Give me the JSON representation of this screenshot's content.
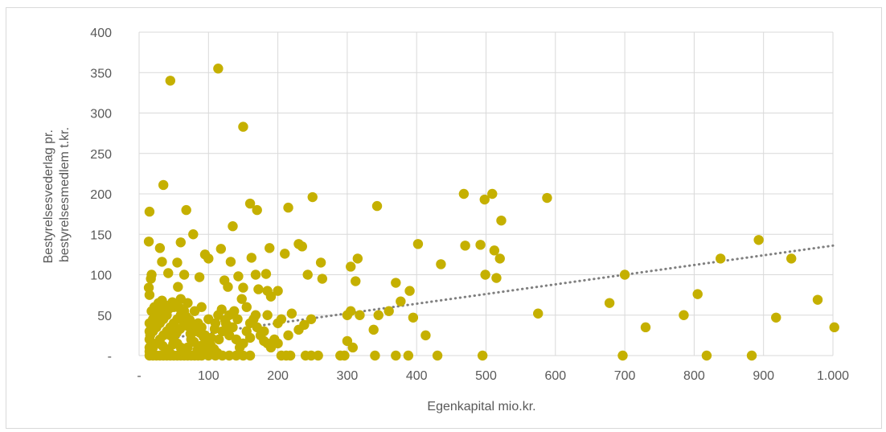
{
  "chart_data": {
    "type": "scatter",
    "xlabel": "Egenkapital mio.kr.",
    "ylabel_lines": [
      "Bestyrelsesvederlag pr.",
      "bestyrelsesmedlem t.kr."
    ],
    "xlim": [
      0,
      1000
    ],
    "ylim": [
      0,
      400
    ],
    "x_ticks": [
      0,
      100,
      200,
      300,
      400,
      500,
      600,
      700,
      800,
      900,
      1000
    ],
    "x_tick_labels": [
      "-",
      "100",
      "200",
      "300",
      "400",
      "500",
      "600",
      "700",
      "800",
      "900",
      "1.000"
    ],
    "y_ticks": [
      0,
      50,
      100,
      150,
      200,
      250,
      300,
      350,
      400
    ],
    "y_tick_labels": [
      "-",
      "50",
      "100",
      "150",
      "200",
      "250",
      "300",
      "350",
      "400"
    ],
    "grid": true,
    "colors": {
      "points": "#C5B000",
      "trendline": "#7f7f7f",
      "grid": "#d9d9d9",
      "text": "#595959"
    },
    "trendline": {
      "type": "linear",
      "style": "dotted",
      "x": [
        15,
        1000
      ],
      "y": [
        18,
        136
      ]
    },
    "series": [
      {
        "points": [
          [
            15,
            178
          ],
          [
            14,
            141
          ],
          [
            18,
            100
          ],
          [
            17,
            95
          ],
          [
            14,
            84
          ],
          [
            15,
            75
          ],
          [
            35,
            211
          ],
          [
            45,
            340
          ],
          [
            114,
            355
          ],
          [
            150,
            283
          ],
          [
            68,
            180
          ],
          [
            60,
            140
          ],
          [
            30,
            133
          ],
          [
            78,
            150
          ],
          [
            33,
            116
          ],
          [
            42,
            102
          ],
          [
            55,
            115
          ],
          [
            100,
            120
          ],
          [
            95,
            125
          ],
          [
            65,
            100
          ],
          [
            56,
            85
          ],
          [
            87,
            97
          ],
          [
            118,
            132
          ],
          [
            135,
            160
          ],
          [
            160,
            188
          ],
          [
            170,
            180
          ],
          [
            162,
            121
          ],
          [
            132,
            116
          ],
          [
            123,
            93
          ],
          [
            143,
            98
          ],
          [
            215,
            183
          ],
          [
            250,
            196
          ],
          [
            230,
            138
          ],
          [
            235,
            135
          ],
          [
            210,
            126
          ],
          [
            188,
            133
          ],
          [
            262,
            115
          ],
          [
            264,
            95
          ],
          [
            243,
            100
          ],
          [
            168,
            100
          ],
          [
            183,
            101
          ],
          [
            150,
            84
          ],
          [
            128,
            85
          ],
          [
            172,
            82
          ],
          [
            148,
            70
          ],
          [
            137,
            55
          ],
          [
            185,
            80
          ],
          [
            200,
            80
          ],
          [
            190,
            73
          ],
          [
            155,
            60
          ],
          [
            168,
            50
          ],
          [
            142,
            45
          ],
          [
            185,
            50
          ],
          [
            205,
            45
          ],
          [
            200,
            40
          ],
          [
            220,
            52
          ],
          [
            230,
            32
          ],
          [
            248,
            45
          ],
          [
            238,
            38
          ],
          [
            215,
            25
          ],
          [
            315,
            120
          ],
          [
            305,
            110
          ],
          [
            312,
            92
          ],
          [
            343,
            185
          ],
          [
            370,
            90
          ],
          [
            377,
            67
          ],
          [
            390,
            80
          ],
          [
            395,
            47
          ],
          [
            402,
            138
          ],
          [
            413,
            25
          ],
          [
            435,
            113
          ],
          [
            468,
            200
          ],
          [
            470,
            136
          ],
          [
            492,
            137
          ],
          [
            498,
            193
          ],
          [
            509,
            200
          ],
          [
            499,
            100
          ],
          [
            512,
            130
          ],
          [
            515,
            96
          ],
          [
            522,
            167
          ],
          [
            520,
            120
          ],
          [
            588,
            195
          ],
          [
            575,
            52
          ],
          [
            678,
            65
          ],
          [
            700,
            100
          ],
          [
            730,
            35
          ],
          [
            785,
            50
          ],
          [
            805,
            76
          ],
          [
            838,
            120
          ],
          [
            893,
            143
          ],
          [
            918,
            47
          ],
          [
            940,
            120
          ],
          [
            978,
            69
          ],
          [
            1002,
            35
          ],
          [
            300,
            50
          ],
          [
            305,
            55
          ],
          [
            318,
            50
          ],
          [
            338,
            32
          ],
          [
            345,
            50
          ],
          [
            360,
            55
          ],
          [
            300,
            18
          ],
          [
            308,
            10
          ],
          [
            340,
            0
          ],
          [
            370,
            0
          ],
          [
            388,
            0
          ],
          [
            430,
            0
          ],
          [
            495,
            0
          ],
          [
            697,
            0
          ],
          [
            818,
            0
          ],
          [
            883,
            0
          ],
          [
            205,
            0
          ],
          [
            212,
            0
          ],
          [
            218,
            0
          ],
          [
            240,
            0
          ],
          [
            248,
            0
          ],
          [
            258,
            0
          ],
          [
            290,
            0
          ],
          [
            296,
            0
          ],
          [
            200,
            15
          ],
          [
            180,
            18
          ],
          [
            160,
            22
          ],
          [
            130,
            25
          ],
          [
            110,
            40
          ],
          [
            100,
            45
          ],
          [
            90,
            60
          ],
          [
            80,
            55
          ],
          [
            70,
            65
          ],
          [
            60,
            70
          ],
          [
            50,
            60
          ],
          [
            40,
            55
          ],
          [
            30,
            50
          ],
          [
            20,
            45
          ],
          [
            15,
            40
          ],
          [
            15,
            30
          ],
          [
            15,
            20
          ],
          [
            15,
            10
          ],
          [
            15,
            5
          ],
          [
            15,
            0
          ],
          [
            20,
            0
          ],
          [
            25,
            0
          ],
          [
            30,
            0
          ],
          [
            35,
            0
          ],
          [
            40,
            0
          ],
          [
            45,
            0
          ],
          [
            50,
            0
          ],
          [
            55,
            0
          ],
          [
            60,
            0
          ],
          [
            65,
            0
          ],
          [
            70,
            0
          ],
          [
            75,
            0
          ],
          [
            80,
            0
          ],
          [
            85,
            0
          ],
          [
            90,
            0
          ],
          [
            100,
            0
          ],
          [
            110,
            0
          ],
          [
            120,
            0
          ],
          [
            130,
            0
          ],
          [
            140,
            0
          ],
          [
            150,
            0
          ],
          [
            160,
            0
          ],
          [
            20,
            10
          ],
          [
            25,
            15
          ],
          [
            30,
            20
          ],
          [
            35,
            25
          ],
          [
            40,
            30
          ],
          [
            45,
            35
          ],
          [
            50,
            40
          ],
          [
            55,
            45
          ],
          [
            60,
            50
          ],
          [
            65,
            55
          ],
          [
            20,
            30
          ],
          [
            25,
            35
          ],
          [
            30,
            40
          ],
          [
            35,
            45
          ],
          [
            40,
            50
          ],
          [
            45,
            25
          ],
          [
            50,
            20
          ],
          [
            55,
            15
          ],
          [
            60,
            10
          ],
          [
            65,
            5
          ],
          [
            70,
            10
          ],
          [
            75,
            20
          ],
          [
            80,
            30
          ],
          [
            85,
            40
          ],
          [
            90,
            35
          ],
          [
            95,
            25
          ],
          [
            100,
            15
          ],
          [
            105,
            10
          ],
          [
            110,
            5
          ],
          [
            115,
            20
          ],
          [
            120,
            30
          ],
          [
            125,
            40
          ],
          [
            130,
            50
          ],
          [
            135,
            35
          ],
          [
            140,
            20
          ],
          [
            145,
            10
          ],
          [
            150,
            15
          ],
          [
            155,
            30
          ],
          [
            160,
            40
          ],
          [
            165,
            45
          ],
          [
            170,
            35
          ],
          [
            175,
            25
          ],
          [
            180,
            30
          ],
          [
            185,
            15
          ],
          [
            190,
            10
          ],
          [
            195,
            20
          ],
          [
            18,
            55
          ],
          [
            22,
            60
          ],
          [
            28,
            65
          ],
          [
            33,
            68
          ],
          [
            38,
            62
          ],
          [
            43,
            58
          ],
          [
            48,
            66
          ],
          [
            53,
            63
          ],
          [
            58,
            59
          ],
          [
            63,
            52
          ],
          [
            68,
            48
          ],
          [
            73,
            44
          ],
          [
            78,
            38
          ],
          [
            83,
            33
          ],
          [
            88,
            28
          ],
          [
            93,
            23
          ],
          [
            98,
            18
          ],
          [
            103,
            13
          ],
          [
            108,
            8
          ],
          [
            113,
            3
          ],
          [
            16,
            25
          ],
          [
            19,
            35
          ],
          [
            24,
            48
          ],
          [
            29,
            57
          ],
          [
            34,
            12
          ],
          [
            39,
            8
          ],
          [
            44,
            4
          ],
          [
            49,
            14
          ],
          [
            54,
            28
          ],
          [
            59,
            33
          ],
          [
            64,
            42
          ],
          [
            69,
            37
          ],
          [
            74,
            27
          ],
          [
            79,
            17
          ],
          [
            84,
            7
          ],
          [
            89,
            12
          ],
          [
            94,
            3
          ],
          [
            99,
            8
          ],
          [
            104,
            22
          ],
          [
            109,
            33
          ],
          [
            114,
            50
          ],
          [
            119,
            57
          ],
          [
            124,
            44
          ],
          [
            129,
            36
          ]
        ]
      }
    ]
  }
}
